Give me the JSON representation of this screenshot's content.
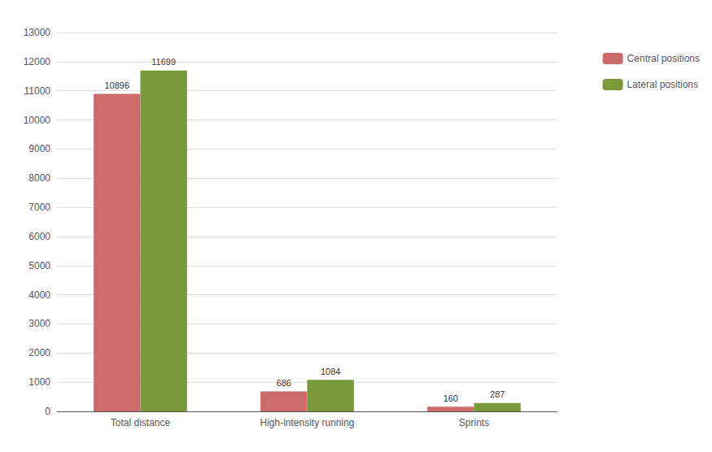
{
  "chart_data": {
    "type": "bar",
    "categories": [
      "Total distance",
      "High-intensity running",
      "Sprints"
    ],
    "series": [
      {
        "name": "Central positions",
        "color": "#cd6b6b",
        "values": [
          10896,
          686,
          160
        ]
      },
      {
        "name": "Lateral positions",
        "color": "#7a9a3a",
        "values": [
          11699,
          1084,
          287
        ]
      }
    ],
    "ylim": [
      0,
      13000
    ],
    "yticks": [
      0,
      1000,
      2000,
      3000,
      4000,
      5000,
      6000,
      7000,
      8000,
      9000,
      10000,
      11000,
      12000,
      13000
    ],
    "grid": true,
    "legend": "upper right",
    "data_labels": true
  }
}
